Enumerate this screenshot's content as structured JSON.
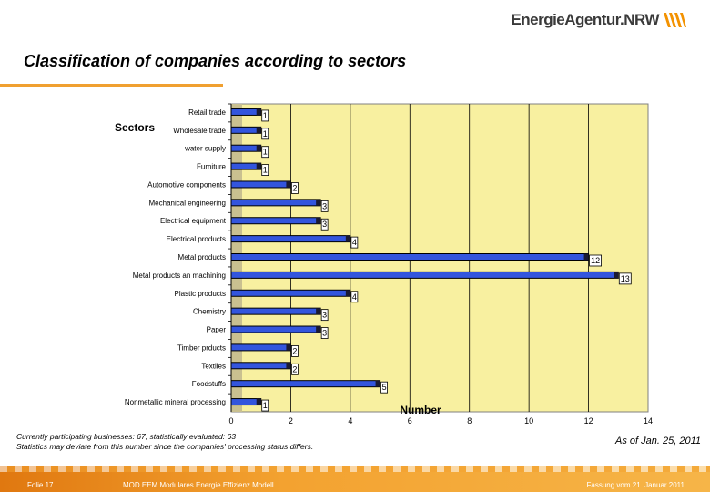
{
  "header": {
    "logo_text": "EnergieAgentur.NRW",
    "title": "Classification of companies according to sectors"
  },
  "chart_data": {
    "type": "bar",
    "orientation": "horizontal",
    "title": "Classification of companies according to sectors",
    "ylabel": "Sectors",
    "xlabel": "Number",
    "xlim": [
      0,
      14
    ],
    "xticks": [
      0,
      2,
      4,
      6,
      8,
      10,
      12,
      14
    ],
    "grid": true,
    "categories": [
      "Retail trade",
      "Wholesale trade",
      "water supply",
      "Furniture",
      "Automotive components",
      "Mechanical engineering",
      "Electrical equipment",
      "Electrical products",
      "Metal products",
      "Metal products an machining",
      "Plastic products",
      "Chemistry",
      "Paper",
      "Timber prducts",
      "Textiles",
      "Foodstuffs",
      "Nonmetallic mineral processing"
    ],
    "values": [
      1,
      1,
      1,
      1,
      2,
      3,
      3,
      4,
      12,
      13,
      4,
      3,
      3,
      2,
      2,
      5,
      1
    ],
    "colors": {
      "bar": "#3355dd",
      "bar_end": "#1a1a33",
      "plot_bg": "#f8f0a0",
      "plot_side": "#c9c090"
    }
  },
  "notes": {
    "line1": "Currently participating businesses: 67, statistically evaluated: 63",
    "line2": "Statistics may deviate from this number since the companies' processing status differs.",
    "as_of": "As of Jan. 25, 2011"
  },
  "footer": {
    "left": "Folie 17",
    "center": "MOD.EEM Modulares Energie.Effizienz.Modell",
    "right": "Fassung vom 21. Januar 2011"
  }
}
